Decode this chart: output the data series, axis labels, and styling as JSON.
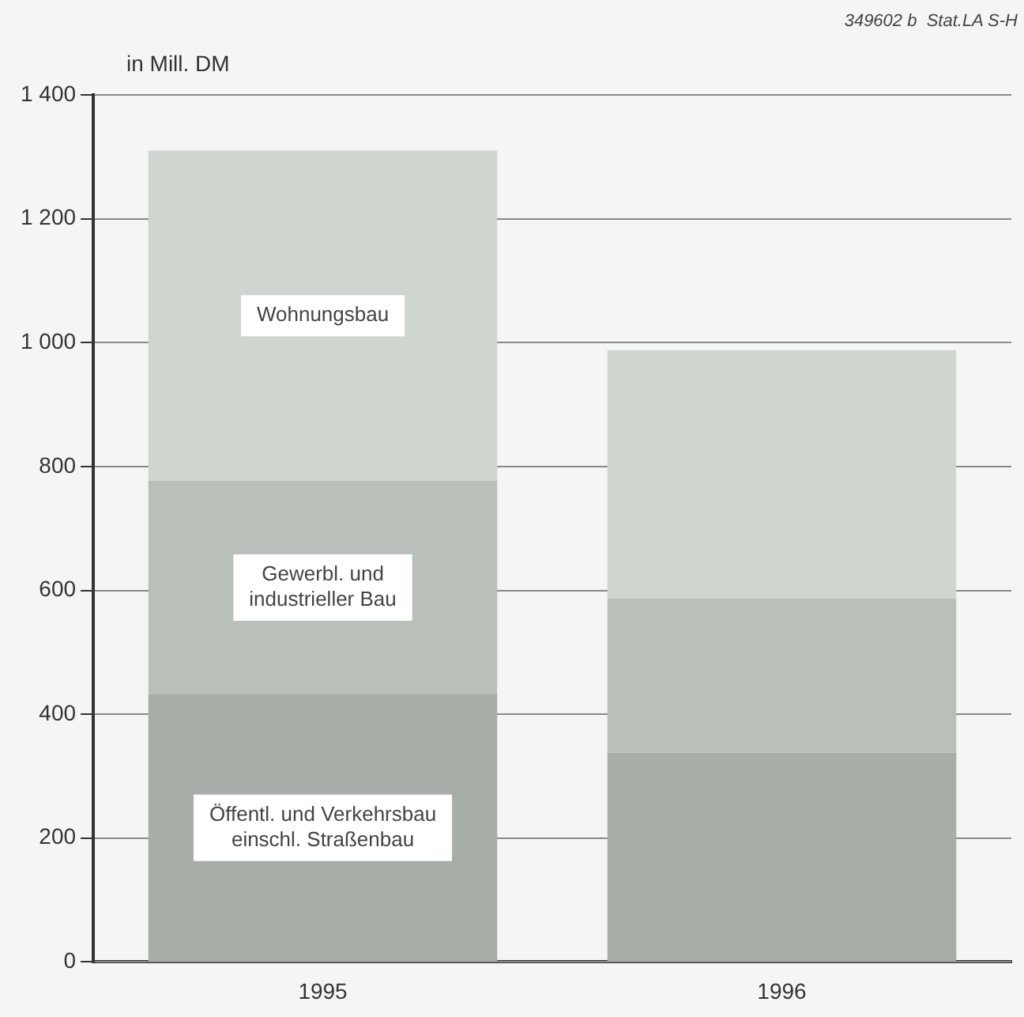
{
  "chart_data": {
    "type": "bar",
    "stacked": true,
    "ylabel": "in Mill. DM",
    "annotations": [
      "349602 b  Stat.LA S-H"
    ],
    "categories": [
      "1995",
      "1996"
    ],
    "series": [
      {
        "name": "Öffentl. und Verkehrsbau\neinschl. Straßenbau",
        "color": "#a7aea7",
        "values": [
          432,
          338
        ]
      },
      {
        "name": "Gewerbl. und\nindustrieller Bau",
        "color": "#b9c0b9",
        "values": [
          345,
          249
        ]
      },
      {
        "name": "Wohnungsbau",
        "color": "#ced6cf",
        "values": [
          533,
          401
        ]
      }
    ],
    "ylim": [
      0,
      1400
    ],
    "yticks": [
      0,
      {
        "value": 200,
        "label": "200"
      },
      {
        "value": 400,
        "label": "400"
      },
      {
        "value": 600,
        "label": "600"
      },
      {
        "value": 800,
        "label": "800"
      },
      {
        "value": 1000,
        "label": "1 000"
      },
      {
        "value": 1200,
        "label": "1 200"
      },
      {
        "value": 1400,
        "label": "1 400"
      }
    ],
    "grid": "y",
    "legend": false
  }
}
